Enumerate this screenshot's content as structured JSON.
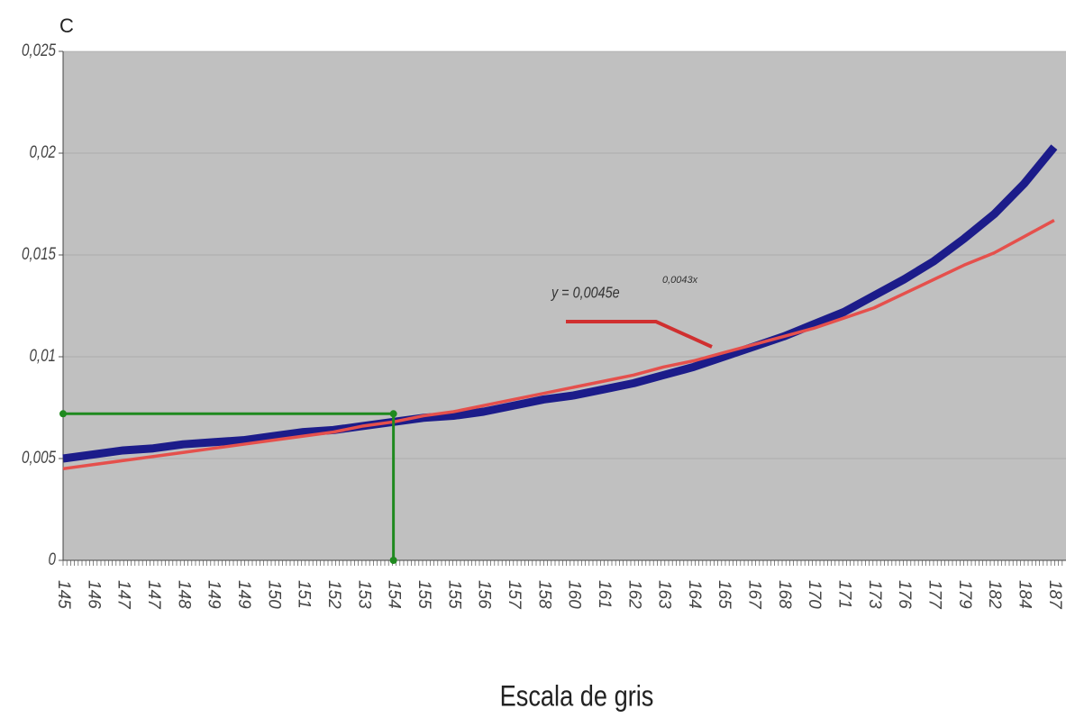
{
  "chart_data": {
    "type": "line",
    "y_axis_label": "C",
    "x_axis_label": "Escala de gris",
    "categories": [
      145,
      146,
      147,
      147,
      148,
      149,
      149,
      150,
      151,
      152,
      153,
      154,
      155,
      155,
      156,
      157,
      158,
      160,
      161,
      162,
      163,
      164,
      165,
      167,
      168,
      170,
      171,
      173,
      176,
      177,
      179,
      182,
      184,
      187
    ],
    "series": [
      {
        "color": "#1c1c8a",
        "values": [
          0.005,
          0.0052,
          0.0054,
          0.0055,
          0.0057,
          0.0058,
          0.0059,
          0.0061,
          0.0063,
          0.0064,
          0.0066,
          0.0068,
          0.007,
          0.0071,
          0.0073,
          0.0076,
          0.0079,
          0.0081,
          0.0084,
          0.0087,
          0.0091,
          0.0095,
          0.01,
          0.0105,
          0.011,
          0.0116,
          0.0122,
          0.013,
          0.0138,
          0.0147,
          0.0158,
          0.017,
          0.0185,
          0.0203
        ]
      },
      {
        "color": "#e5504c",
        "values": [
          0.0045,
          0.0047,
          0.0049,
          0.0051,
          0.0053,
          0.0055,
          0.0057,
          0.0059,
          0.0061,
          0.0063,
          0.0066,
          0.0068,
          0.0071,
          0.0073,
          0.0076,
          0.0079,
          0.0082,
          0.0085,
          0.0088,
          0.0091,
          0.0095,
          0.0098,
          0.0102,
          0.0106,
          0.011,
          0.0114,
          0.0119,
          0.0124,
          0.0131,
          0.0138,
          0.0145,
          0.0151,
          0.0159,
          0.0167
        ]
      }
    ],
    "guide": {
      "x": 154,
      "y": 0.0072,
      "color": "#1f8a1f"
    },
    "trendline_label": {
      "text": "y = 0,0045e",
      "exponent": "0,0043x"
    },
    "ylim": [
      0,
      0.025
    ],
    "yticks": [
      0,
      {
        "value": 0.005,
        "label": "0,005"
      },
      {
        "value": 0.01,
        "label": "0,01"
      },
      {
        "value": 0.015,
        "label": "0,015"
      },
      {
        "value": 0.02,
        "label": "0,02"
      },
      {
        "value": 0.025,
        "label": "0,025"
      }
    ],
    "plot_background": "#c0c0c0"
  }
}
